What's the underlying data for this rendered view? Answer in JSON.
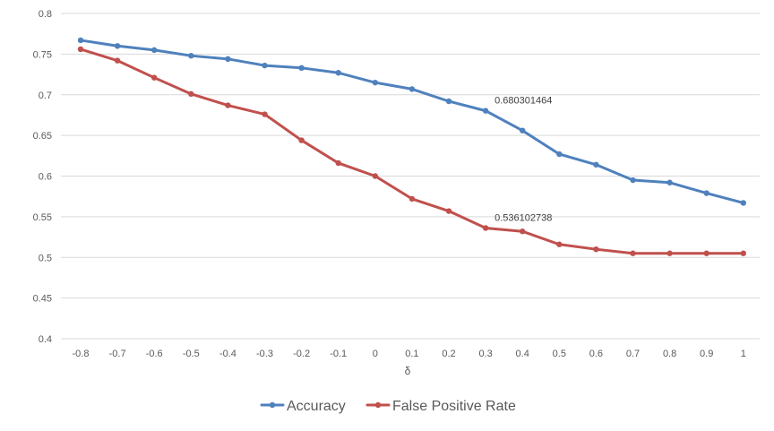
{
  "chart_data": {
    "type": "line",
    "title": "",
    "xlabel": "δ",
    "ylabel": "",
    "categories": [
      "-0.8",
      "-0.7",
      "-0.6",
      "-0.5",
      "-0.4",
      "-0.3",
      "-0.2",
      "-0.1",
      "0",
      "0.1",
      "0.2",
      "0.3",
      "0.4",
      "0.5",
      "0.6",
      "0.7",
      "0.8",
      "0.9",
      "1"
    ],
    "ylim": [
      0.4,
      0.8
    ],
    "yticks": [
      "0.4",
      "0.45",
      "0.5",
      "0.55",
      "0.6",
      "0.65",
      "0.7",
      "0.75",
      "0.8"
    ],
    "grid": "horizontal",
    "legend_position": "bottom",
    "series": [
      {
        "name": "Accuracy",
        "color": "#4f81bd",
        "values": [
          0.767,
          0.76,
          0.755,
          0.748,
          0.744,
          0.736,
          0.733,
          0.727,
          0.715,
          0.707,
          0.692,
          0.680301464,
          0.656,
          0.627,
          0.614,
          0.595,
          0.592,
          0.579,
          0.567
        ]
      },
      {
        "name": "False Positive Rate",
        "color": "#c0504d",
        "values": [
          0.756,
          0.742,
          0.721,
          0.701,
          0.687,
          0.676,
          0.644,
          0.616,
          0.6,
          0.572,
          0.557,
          0.536102738,
          0.532,
          0.516,
          0.51,
          0.505,
          0.505,
          0.505,
          0.505
        ]
      }
    ],
    "annotations": [
      {
        "series": 0,
        "index": 11,
        "text": "0.680301464"
      },
      {
        "series": 1,
        "index": 11,
        "text": "0.536102738"
      }
    ]
  }
}
